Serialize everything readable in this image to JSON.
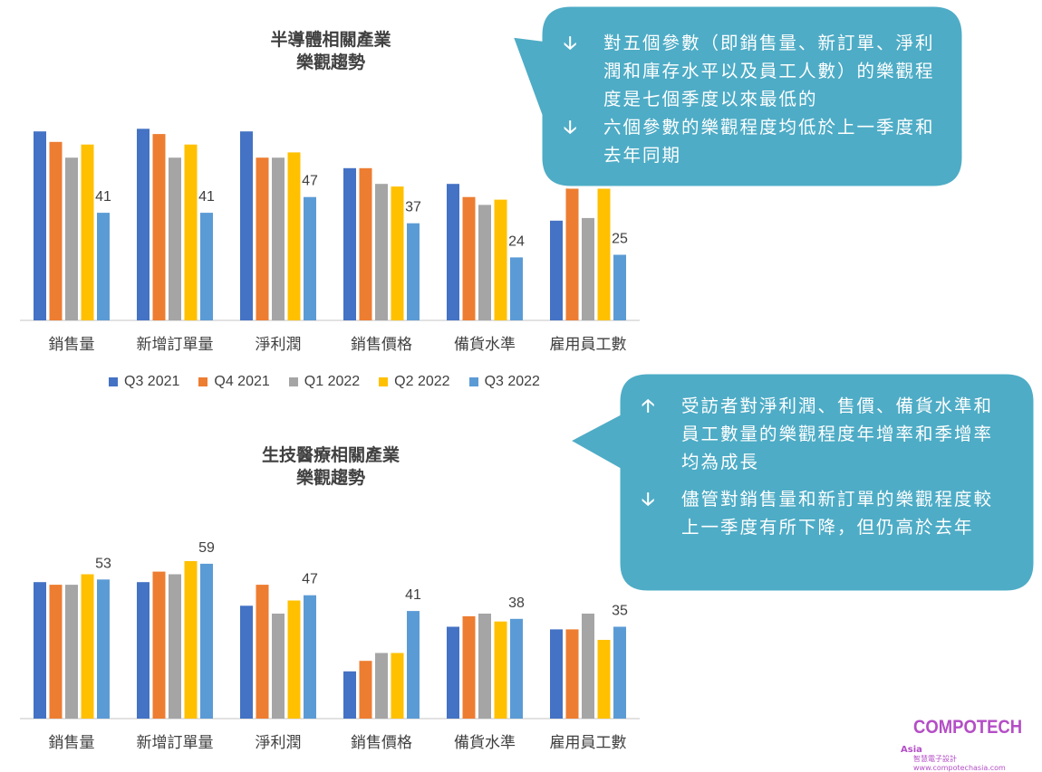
{
  "colors": {
    "series": [
      "#4472c4",
      "#ed7d31",
      "#a5a5a5",
      "#ffc000",
      "#5b9bd5"
    ],
    "callout_fill": "#4eacc6",
    "callout_border": "#ffffff",
    "logo": "#b44ec6"
  },
  "chart_data": [
    {
      "type": "bar",
      "title": "半導體相關產業\n樂觀趨勢",
      "title_lines": [
        "半導體相關產業",
        "樂觀趨勢"
      ],
      "categories": [
        "銷售量",
        "新增訂單量",
        "淨利潤",
        "銷售價格",
        "備貨水準",
        "雇用員工數"
      ],
      "series": [
        {
          "name": "Q3 2021",
          "values": [
            72,
            73,
            72,
            58,
            52,
            38
          ]
        },
        {
          "name": "Q4 2021",
          "values": [
            68,
            71,
            62,
            58,
            47,
            62
          ]
        },
        {
          "name": "Q1 2022",
          "values": [
            62,
            62,
            62,
            52,
            44,
            39
          ]
        },
        {
          "name": "Q2 2022",
          "values": [
            67,
            67,
            64,
            51,
            46,
            62
          ]
        },
        {
          "name": "Q3 2022",
          "values": [
            41,
            41,
            47,
            37,
            24,
            25
          ]
        }
      ],
      "data_labels": [
        "41",
        "41",
        "47",
        "37",
        "24",
        "25"
      ],
      "ylim": [
        0,
        85
      ],
      "xlabel": "",
      "ylabel": "",
      "grid": false,
      "legend": "bottom"
    },
    {
      "type": "bar",
      "title": "生技醫療相關產業\n樂觀趨勢",
      "title_lines": [
        "生技醫療相關產業",
        "樂觀趨勢"
      ],
      "categories": [
        "銷售量",
        "新增訂單量",
        "淨利潤",
        "銷售價格",
        "備貨水準",
        "雇用員工數"
      ],
      "series": [
        {
          "name": "Q3 2021",
          "values": [
            52,
            52,
            43,
            18,
            35,
            34
          ]
        },
        {
          "name": "Q4 2021",
          "values": [
            51,
            56,
            51,
            22,
            39,
            34
          ]
        },
        {
          "name": "Q1 2022",
          "values": [
            51,
            55,
            40,
            25,
            40,
            40
          ]
        },
        {
          "name": "Q2 2022",
          "values": [
            55,
            60,
            45,
            25,
            37,
            30
          ]
        },
        {
          "name": "Q3 2022",
          "values": [
            53,
            59,
            47,
            41,
            38,
            35
          ]
        }
      ],
      "data_labels": [
        "53",
        "59",
        "47",
        "41",
        "38",
        "35"
      ],
      "ylim": [
        0,
        85
      ],
      "xlabel": "",
      "ylabel": "",
      "grid": false,
      "legend": "none"
    }
  ],
  "legend": {
    "items": [
      "Q3 2021",
      "Q4 2021",
      "Q1 2022",
      "Q2 2022",
      "Q3 2022"
    ]
  },
  "callout1": {
    "bullets": [
      {
        "icon": "arrow-down-icon",
        "glyph": "🡣",
        "text": "對五個參數（即銷售量、新訂單、淨利潤和庫存水平以及員工人數）的樂觀程度是七個季度以來最低的"
      },
      {
        "icon": "arrow-down-icon",
        "glyph": "🡣",
        "text": "六個參數的樂觀程度均低於上一季度和去年同期"
      }
    ]
  },
  "callout2": {
    "bullets": [
      {
        "icon": "arrow-up-icon",
        "glyph": "🡡",
        "text": "受訪者對淨利潤、售價、備貨水準和員工數量的樂觀程度年增率和季增率均為成長"
      },
      {
        "icon": "arrow-down-icon",
        "glyph": "🡣",
        "text": "儘管對銷售量和新訂單的樂觀程度較上一季度有所下降，但仍高於去年"
      }
    ]
  },
  "logo": {
    "main": "COMPOTECH",
    "suffix": "Asia",
    "tagline": "智慧電子設計 www.compotechasia.com"
  }
}
